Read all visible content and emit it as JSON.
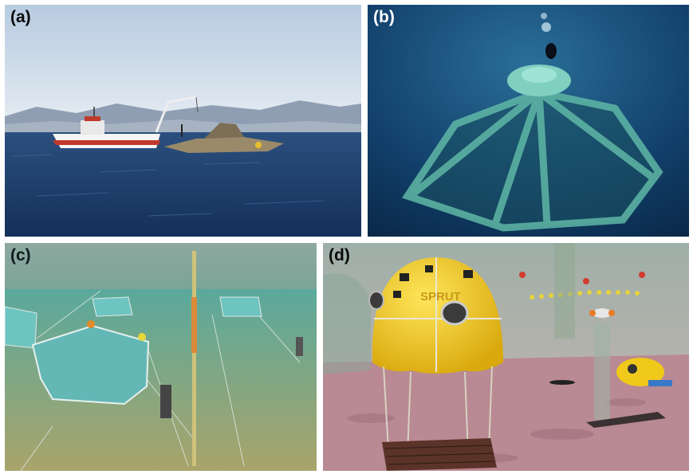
{
  "panels": [
    {
      "label": "(a)",
      "content": "Surface fishing boat with crane deploying an offshore cage at sea"
    },
    {
      "label": "(b)",
      "content": "Underwater submerged cage frame with diver above"
    },
    {
      "label": "(c)",
      "content": "Rendering of submerged fish cages moored to the seabed"
    },
    {
      "label": "(d)",
      "content": "Rendering of yellow SPRUT underwater habitat with small submersible"
    }
  ],
  "habitat_text": "SPRUT",
  "colors": {
    "sky_a": "#c7d7e6",
    "sea_a": "#1e3f6b",
    "water_b": "#0f3a63",
    "water_c": "#5f9b8c",
    "habitat_yellow": "#f3cf1e",
    "seabed_d": "#b98a93"
  }
}
